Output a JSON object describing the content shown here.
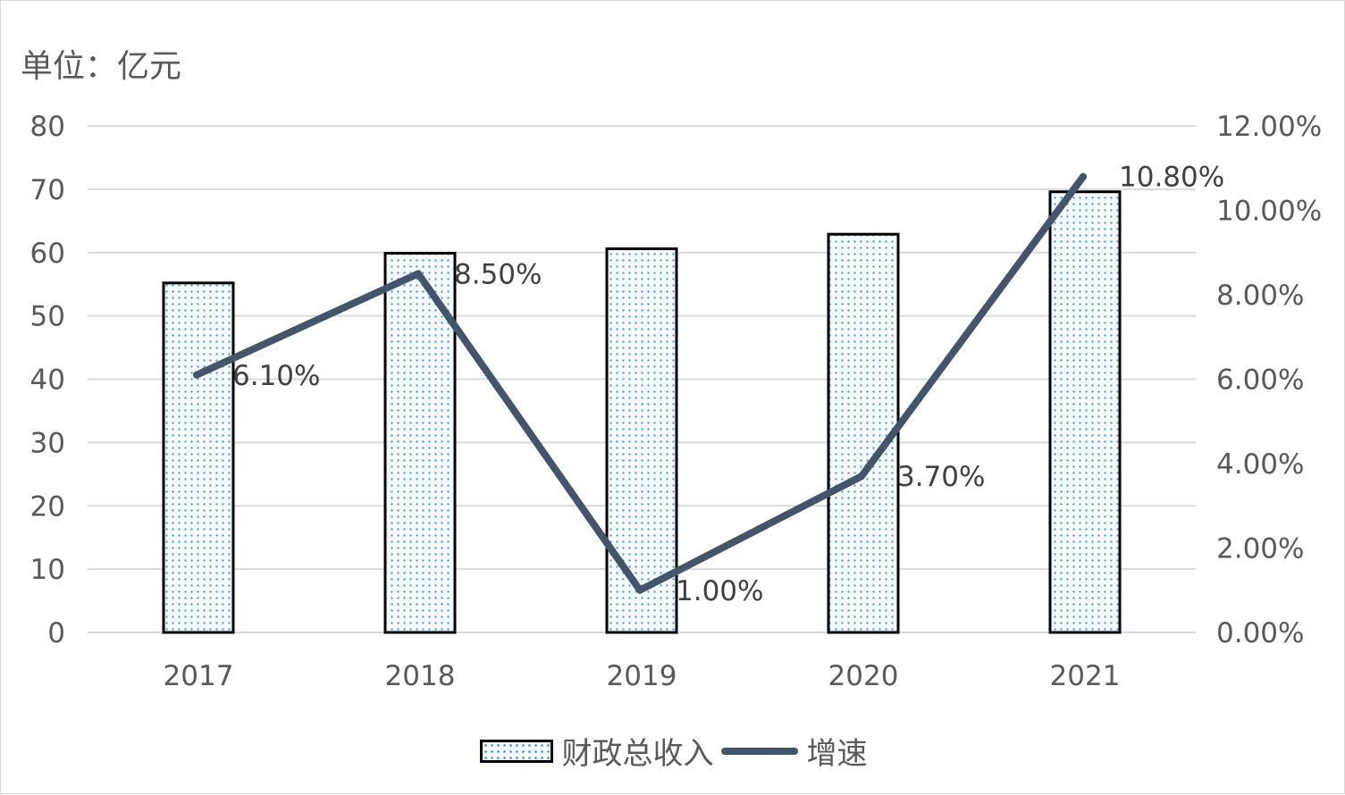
{
  "unit_label": "单位：亿元",
  "chart_data": {
    "type": "bar",
    "categories": [
      "2017",
      "2018",
      "2019",
      "2020",
      "2021"
    ],
    "series": [
      {
        "name": "财政总收入",
        "type": "bar",
        "axis": "left",
        "values": [
          55.2,
          59.9,
          60.6,
          62.9,
          69.6
        ]
      },
      {
        "name": "增速",
        "type": "line",
        "axis": "right",
        "values": [
          6.1,
          8.5,
          1.0,
          3.7,
          10.8
        ],
        "labels": [
          "6.10%",
          "8.50%",
          "1.00%",
          "3.70%",
          "10.80%"
        ]
      }
    ],
    "y_left": {
      "min": 0,
      "max": 80,
      "ticks": [
        "0",
        "10",
        "20",
        "30",
        "40",
        "50",
        "60",
        "70",
        "80"
      ]
    },
    "y_right": {
      "min": 0,
      "max": 12,
      "ticks": [
        "0.00%",
        "2.00%",
        "4.00%",
        "6.00%",
        "8.00%",
        "10.00%",
        "12.00%"
      ]
    },
    "grid": true,
    "legend_position": "bottom",
    "colors": {
      "bar_dot": "#5b9bd5",
      "bar_border": "#000000",
      "line": "#44546a",
      "grid": "#d9d9d9",
      "text": "#595959"
    }
  }
}
